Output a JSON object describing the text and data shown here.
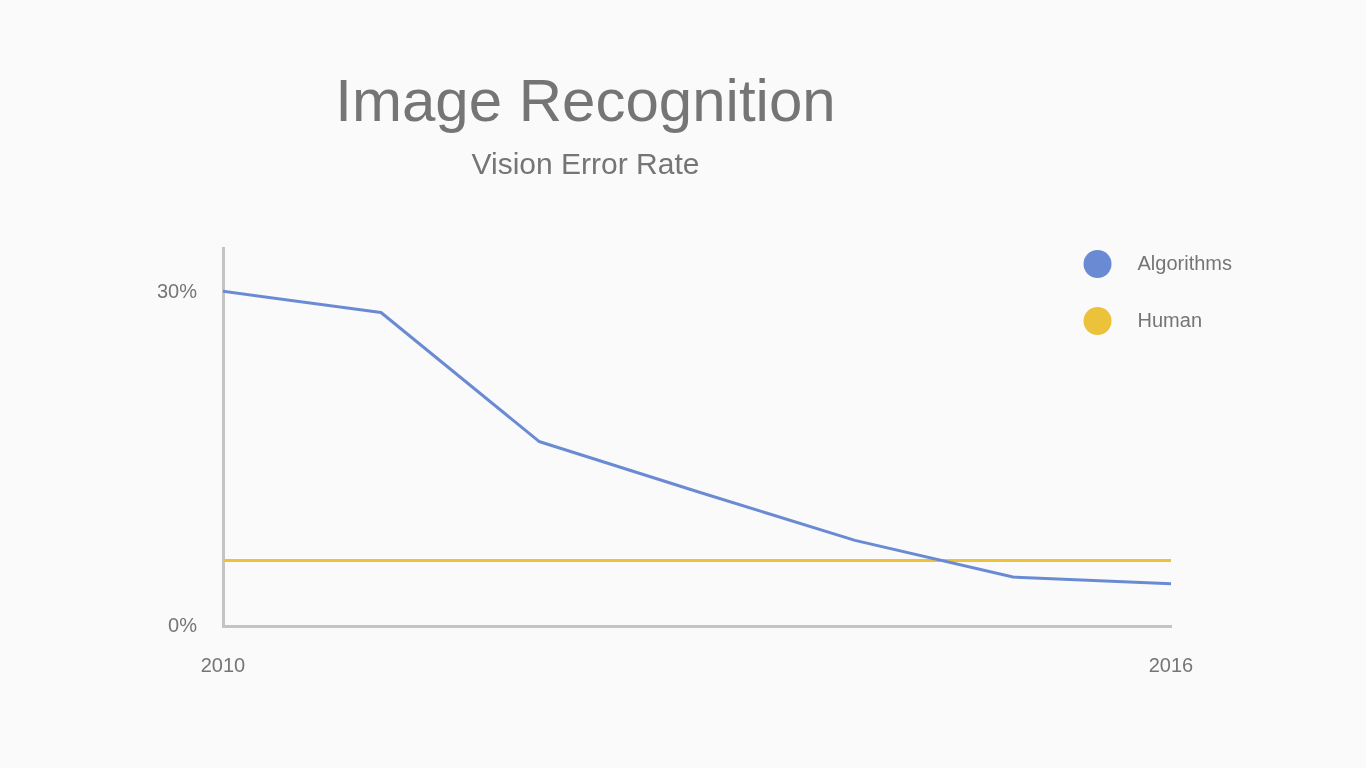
{
  "chart_data": {
    "type": "line",
    "title": "Image Recognition",
    "subtitle": "Vision Error Rate",
    "x": [
      2010,
      2011,
      2012,
      2013,
      2014,
      2015,
      2016
    ],
    "series": [
      {
        "name": "Algorithms",
        "color": "#6a8bd4",
        "values": [
          30.1,
          28.2,
          16.6,
          12.1,
          7.7,
          4.4,
          3.8
        ]
      },
      {
        "name": "Human",
        "color": "#ecc23b",
        "values": [
          5.9,
          5.9,
          5.9,
          5.9,
          5.9,
          5.9,
          5.9
        ]
      }
    ],
    "xlim": [
      2010,
      2016
    ],
    "xticks": [
      2010,
      2016
    ],
    "ylim": [
      0,
      34
    ],
    "yticks": [
      {
        "value": 0,
        "label": "0%"
      },
      {
        "value": 30,
        "label": "30%"
      }
    ],
    "legend": "top right"
  }
}
